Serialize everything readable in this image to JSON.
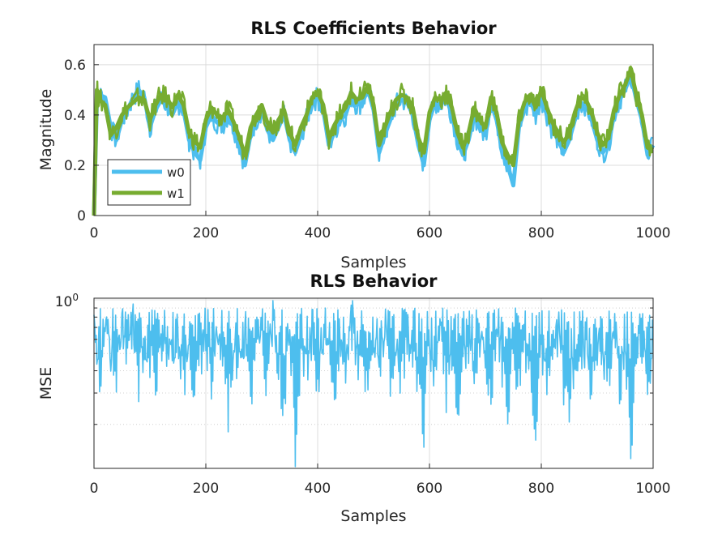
{
  "colors": {
    "w0": "#4DBEEE",
    "w1": "#77AC30",
    "mse": "#4DBEEE",
    "grid": "#dcdcdc",
    "axis": "#262626"
  },
  "chart_data": [
    {
      "type": "line",
      "title": "RLS Coefficients Behavior",
      "xlabel": "Samples",
      "ylabel": "Magnitude",
      "xlim": [
        0,
        1000
      ],
      "ylim": [
        0,
        0.68
      ],
      "xticks": [
        "0",
        "200",
        "400",
        "600",
        "800",
        "1000"
      ],
      "yticks": [
        "0",
        "0.2",
        "0.4",
        "0.6"
      ],
      "grid": true,
      "legend_position": "bottom-left",
      "x": [
        0,
        5,
        10,
        20,
        30,
        40,
        50,
        60,
        70,
        80,
        90,
        100,
        110,
        120,
        130,
        140,
        150,
        160,
        170,
        180,
        190,
        200,
        210,
        220,
        230,
        240,
        250,
        260,
        270,
        280,
        290,
        300,
        310,
        320,
        330,
        340,
        350,
        360,
        370,
        380,
        390,
        400,
        410,
        420,
        430,
        440,
        450,
        460,
        470,
        480,
        490,
        500,
        510,
        520,
        530,
        540,
        550,
        560,
        570,
        580,
        590,
        600,
        610,
        620,
        630,
        640,
        650,
        660,
        670,
        680,
        690,
        700,
        710,
        720,
        730,
        740,
        750,
        760,
        770,
        780,
        790,
        800,
        810,
        820,
        830,
        840,
        850,
        860,
        870,
        880,
        890,
        900,
        910,
        920,
        930,
        940,
        950,
        960,
        970,
        980,
        990,
        1000
      ],
      "series": [
        {
          "name": "w0",
          "values": [
            0.0,
            0.45,
            0.48,
            0.47,
            0.35,
            0.3,
            0.38,
            0.42,
            0.47,
            0.5,
            0.47,
            0.35,
            0.42,
            0.46,
            0.44,
            0.4,
            0.45,
            0.42,
            0.3,
            0.25,
            0.22,
            0.35,
            0.4,
            0.37,
            0.36,
            0.4,
            0.35,
            0.28,
            0.2,
            0.32,
            0.38,
            0.42,
            0.34,
            0.3,
            0.35,
            0.4,
            0.3,
            0.25,
            0.32,
            0.38,
            0.45,
            0.47,
            0.42,
            0.28,
            0.33,
            0.38,
            0.4,
            0.47,
            0.44,
            0.45,
            0.5,
            0.42,
            0.25,
            0.32,
            0.38,
            0.44,
            0.46,
            0.45,
            0.4,
            0.28,
            0.2,
            0.38,
            0.45,
            0.44,
            0.47,
            0.4,
            0.3,
            0.24,
            0.3,
            0.4,
            0.35,
            0.32,
            0.45,
            0.38,
            0.26,
            0.2,
            0.12,
            0.35,
            0.42,
            0.46,
            0.4,
            0.47,
            0.4,
            0.34,
            0.3,
            0.25,
            0.3,
            0.38,
            0.45,
            0.44,
            0.38,
            0.3,
            0.25,
            0.28,
            0.4,
            0.46,
            0.5,
            0.56,
            0.46,
            0.38,
            0.24,
            0.28
          ]
        },
        {
          "name": "w1",
          "values": [
            0.0,
            0.5,
            0.46,
            0.44,
            0.32,
            0.35,
            0.4,
            0.43,
            0.45,
            0.47,
            0.46,
            0.38,
            0.44,
            0.48,
            0.47,
            0.43,
            0.48,
            0.44,
            0.33,
            0.3,
            0.27,
            0.38,
            0.43,
            0.4,
            0.39,
            0.42,
            0.37,
            0.31,
            0.24,
            0.35,
            0.4,
            0.44,
            0.37,
            0.33,
            0.38,
            0.42,
            0.33,
            0.28,
            0.35,
            0.4,
            0.47,
            0.49,
            0.44,
            0.31,
            0.36,
            0.4,
            0.43,
            0.49,
            0.46,
            0.47,
            0.52,
            0.44,
            0.28,
            0.35,
            0.41,
            0.46,
            0.48,
            0.47,
            0.43,
            0.31,
            0.25,
            0.41,
            0.47,
            0.46,
            0.49,
            0.43,
            0.33,
            0.27,
            0.33,
            0.43,
            0.38,
            0.35,
            0.47,
            0.41,
            0.29,
            0.24,
            0.2,
            0.38,
            0.45,
            0.48,
            0.43,
            0.5,
            0.43,
            0.37,
            0.33,
            0.29,
            0.33,
            0.41,
            0.47,
            0.46,
            0.41,
            0.33,
            0.28,
            0.31,
            0.42,
            0.48,
            0.52,
            0.58,
            0.48,
            0.4,
            0.27,
            0.26
          ]
        }
      ]
    },
    {
      "type": "line",
      "title": "RLS Behavior",
      "xlabel": "Samples",
      "ylabel": "MSE",
      "xlim": [
        0,
        1000
      ],
      "yscale": "log",
      "xticks": [
        "0",
        "200",
        "400",
        "600",
        "800",
        "1000"
      ],
      "yticks": [
        {
          "base": "10",
          "exp": "0"
        }
      ],
      "grid": true,
      "x": [
        0,
        10,
        20,
        30,
        40,
        50,
        60,
        70,
        80,
        90,
        100,
        110,
        120,
        130,
        140,
        150,
        160,
        170,
        180,
        190,
        200,
        210,
        220,
        230,
        240,
        250,
        260,
        270,
        280,
        290,
        300,
        310,
        320,
        330,
        340,
        350,
        360,
        370,
        380,
        390,
        400,
        410,
        420,
        430,
        440,
        450,
        460,
        470,
        480,
        490,
        500,
        510,
        520,
        530,
        540,
        550,
        560,
        570,
        580,
        590,
        600,
        610,
        620,
        630,
        640,
        650,
        660,
        670,
        680,
        690,
        700,
        710,
        720,
        730,
        740,
        750,
        760,
        770,
        780,
        790,
        800,
        810,
        820,
        830,
        840,
        850,
        860,
        870,
        880,
        890,
        900,
        910,
        920,
        930,
        940,
        950,
        960,
        970,
        980,
        990,
        1000
      ],
      "series": [
        {
          "name": "",
          "values": [
            0.85,
            0.25,
            0.75,
            0.55,
            0.3,
            0.7,
            0.45,
            0.8,
            0.35,
            0.6,
            0.5,
            0.3,
            0.75,
            0.4,
            0.55,
            0.65,
            0.35,
            0.5,
            0.3,
            0.45,
            0.6,
            0.35,
            0.7,
            0.5,
            0.25,
            0.55,
            0.4,
            0.75,
            0.3,
            0.5,
            0.6,
            0.35,
            0.8,
            0.45,
            0.25,
            0.55,
            0.15,
            0.5,
            0.4,
            0.7,
            0.3,
            0.55,
            0.45,
            0.25,
            0.6,
            0.35,
            0.95,
            0.5,
            0.4,
            0.3,
            0.55,
            0.45,
            0.7,
            0.25,
            0.5,
            0.35,
            0.6,
            0.45,
            0.3,
            0.2,
            0.55,
            0.4,
            0.65,
            0.3,
            0.5,
            0.25,
            0.45,
            0.6,
            0.35,
            0.55,
            0.4,
            0.3,
            0.7,
            0.45,
            0.25,
            0.5,
            0.35,
            0.6,
            0.4,
            0.2,
            0.55,
            0.3,
            0.45,
            0.65,
            0.35,
            0.25,
            0.5,
            0.4,
            0.6,
            0.3,
            0.55,
            0.45,
            0.35,
            0.7,
            0.3,
            0.5,
            0.12,
            0.45,
            0.6,
            0.3,
            0.5
          ]
        }
      ]
    }
  ]
}
